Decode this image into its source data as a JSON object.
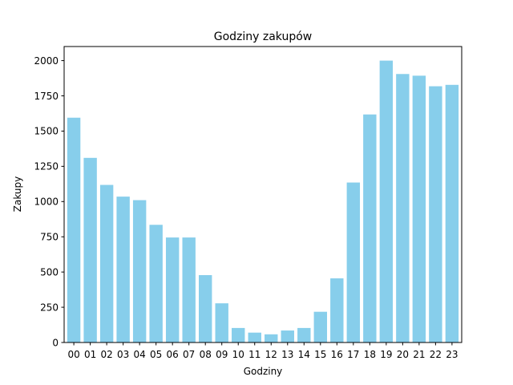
{
  "chart_data": {
    "type": "bar",
    "title": "Godziny zakupów",
    "xlabel": "Godziny",
    "ylabel": "Zakupy",
    "categories": [
      "00",
      "01",
      "02",
      "03",
      "04",
      "05",
      "06",
      "07",
      "08",
      "09",
      "10",
      "11",
      "12",
      "13",
      "14",
      "15",
      "16",
      "17",
      "18",
      "19",
      "20",
      "21",
      "22",
      "23"
    ],
    "values": [
      1595,
      1310,
      1118,
      1035,
      1010,
      835,
      745,
      745,
      478,
      278,
      103,
      70,
      58,
      85,
      103,
      218,
      455,
      1135,
      1618,
      2000,
      1905,
      1893,
      1818,
      1828
    ],
    "ylim": [
      0,
      2100
    ],
    "yticks": [
      0,
      250,
      500,
      750,
      1000,
      1250,
      1500,
      1750,
      2000
    ],
    "bar_color": "#87CEEB",
    "grid": false,
    "legend": "none"
  }
}
